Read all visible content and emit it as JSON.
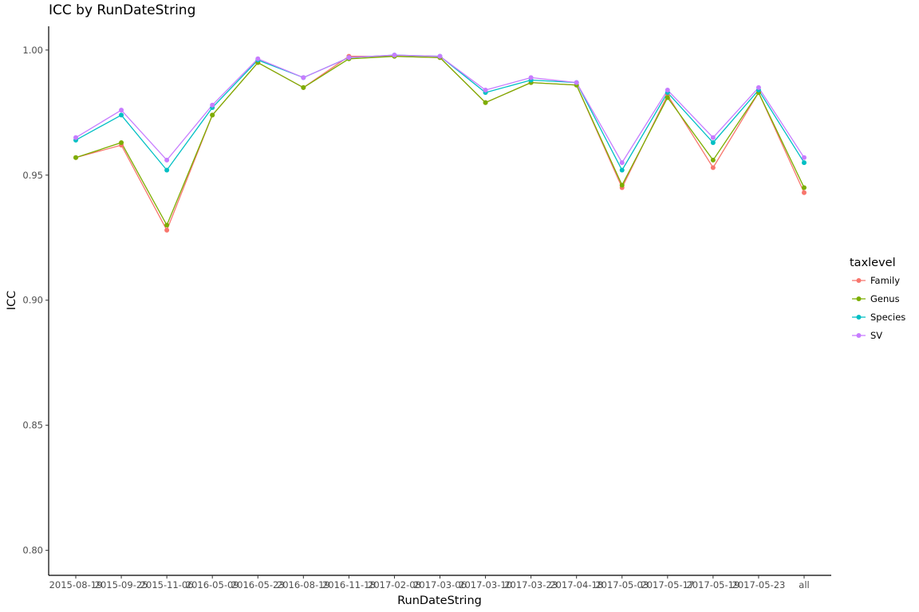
{
  "chart_data": {
    "type": "line",
    "title": "ICC by RunDateString",
    "xlabel": "RunDateString",
    "ylabel": "ICC",
    "ylim": [
      0.79,
      1.0095
    ],
    "yticks": [
      0.8,
      0.85,
      0.9,
      0.95,
      1.0
    ],
    "ytick_labels": [
      "0.80",
      "0.85",
      "0.90",
      "0.95",
      "1.00"
    ],
    "categories": [
      "2015-08-19",
      "2015-09-25",
      "2015-11-06",
      "2016-05-09",
      "2016-05-23",
      "2016-08-19",
      "2016-11-18",
      "2017-02-08",
      "2017-03-06",
      "2017-03-10",
      "2017-03-23",
      "2017-04-18",
      "2017-05-03",
      "2017-05-17",
      "2017-05-19",
      "2017-05-23",
      "all"
    ],
    "grid": false,
    "legend": {
      "title": "taxlevel",
      "position": "right"
    },
    "series": [
      {
        "name": "Family",
        "color": "#F8766D",
        "values": [
          0.957,
          0.962,
          0.928,
          0.974,
          0.995,
          0.985,
          0.9975,
          0.9975,
          0.997,
          0.979,
          0.987,
          0.986,
          0.945,
          0.982,
          0.953,
          0.983,
          0.943
        ]
      },
      {
        "name": "Genus",
        "color": "#7CAE00",
        "values": [
          0.957,
          0.963,
          0.93,
          0.974,
          0.995,
          0.985,
          0.9965,
          0.9975,
          0.997,
          0.979,
          0.987,
          0.986,
          0.946,
          0.981,
          0.956,
          0.983,
          0.945
        ]
      },
      {
        "name": "Species",
        "color": "#00BFC4",
        "values": [
          0.964,
          0.974,
          0.952,
          0.977,
          0.996,
          0.989,
          0.997,
          0.998,
          0.9975,
          0.983,
          0.988,
          0.987,
          0.952,
          0.983,
          0.963,
          0.984,
          0.955
        ]
      },
      {
        "name": "SV",
        "color": "#C77CFF",
        "values": [
          0.965,
          0.976,
          0.956,
          0.978,
          0.9965,
          0.989,
          0.997,
          0.998,
          0.9975,
          0.984,
          0.989,
          0.987,
          0.955,
          0.984,
          0.965,
          0.985,
          0.957
        ]
      }
    ]
  }
}
